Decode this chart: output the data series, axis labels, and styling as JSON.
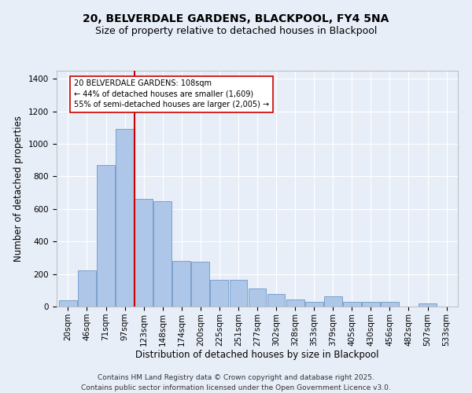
{
  "title1": "20, BELVERDALE GARDENS, BLACKPOOL, FY4 5NA",
  "title2": "Size of property relative to detached houses in Blackpool",
  "xlabel": "Distribution of detached houses by size in Blackpool",
  "ylabel": "Number of detached properties",
  "categories": [
    "20sqm",
    "46sqm",
    "71sqm",
    "97sqm",
    "123sqm",
    "148sqm",
    "174sqm",
    "200sqm",
    "225sqm",
    "251sqm",
    "277sqm",
    "302sqm",
    "328sqm",
    "353sqm",
    "379sqm",
    "405sqm",
    "430sqm",
    "456sqm",
    "482sqm",
    "507sqm",
    "533sqm"
  ],
  "values": [
    40,
    220,
    870,
    1090,
    660,
    650,
    280,
    275,
    165,
    165,
    110,
    75,
    45,
    30,
    65,
    30,
    30,
    30,
    0,
    20,
    0
  ],
  "bar_color": "#aec6e8",
  "bar_edge_color": "#5a8abf",
  "vline_color": "#cc0000",
  "annotation_text": "20 BELVERDALE GARDENS: 108sqm\n← 44% of detached houses are smaller (1,609)\n55% of semi-detached houses are larger (2,005) →",
  "annotation_box_color": "#ffffff",
  "annotation_box_edge": "#cc0000",
  "ylim": [
    0,
    1450
  ],
  "yticks": [
    0,
    200,
    400,
    600,
    800,
    1000,
    1200,
    1400
  ],
  "footer": "Contains HM Land Registry data © Crown copyright and database right 2025.\nContains public sector information licensed under the Open Government Licence v3.0.",
  "bg_color": "#e8eef8",
  "plot_bg_color": "#e8eef8",
  "grid_color": "#ffffff",
  "title_fontsize": 10,
  "subtitle_fontsize": 9,
  "label_fontsize": 8.5,
  "tick_fontsize": 7.5,
  "footer_fontsize": 6.5
}
